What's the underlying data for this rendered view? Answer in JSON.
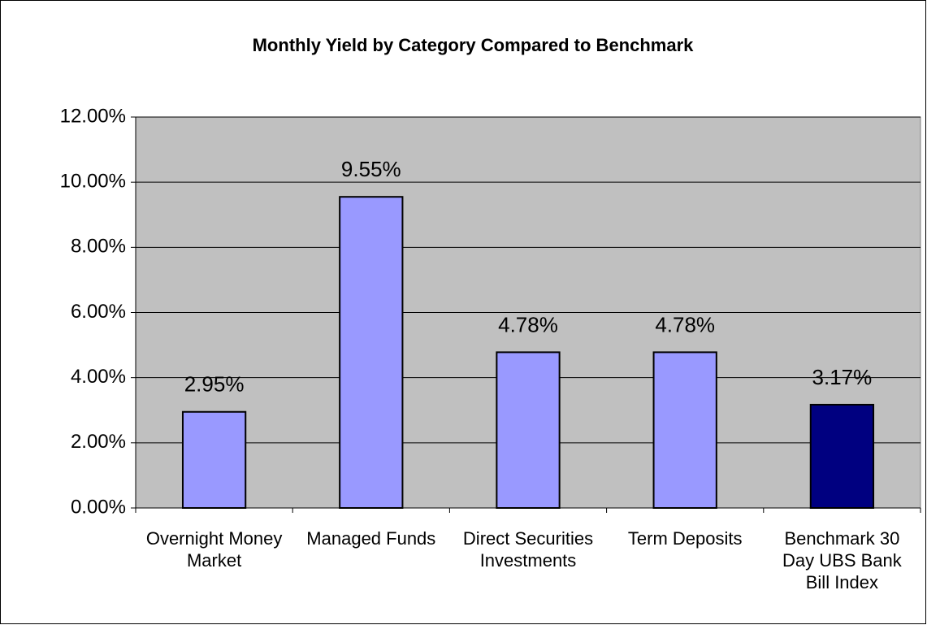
{
  "chart_data": {
    "type": "bar",
    "title": "Monthly Yield by Category Compared to Benchmark",
    "categories": [
      "Overnight Money Market",
      "Managed Funds",
      "Direct Securities Investments",
      "Term Deposits",
      "Benchmark 30 Day UBS Bank Bill Index"
    ],
    "values": [
      2.95,
      9.55,
      4.78,
      4.78,
      3.17
    ],
    "value_labels": [
      "2.95%",
      "9.55%",
      "4.78%",
      "4.78%",
      "3.17%"
    ],
    "colors": [
      "#9999ff",
      "#9999ff",
      "#9999ff",
      "#9999ff",
      "#000080"
    ],
    "ylim": [
      0,
      12
    ],
    "yticks": [
      {
        "value": 0,
        "label": "0.00%"
      },
      {
        "value": 2,
        "label": "2.00%"
      },
      {
        "value": 4,
        "label": "4.00%"
      },
      {
        "value": 6,
        "label": "6.00%"
      },
      {
        "value": 8,
        "label": "8.00%"
      },
      {
        "value": 10,
        "label": "10.00%"
      },
      {
        "value": 12,
        "label": "12.00%"
      }
    ],
    "grid": true
  }
}
